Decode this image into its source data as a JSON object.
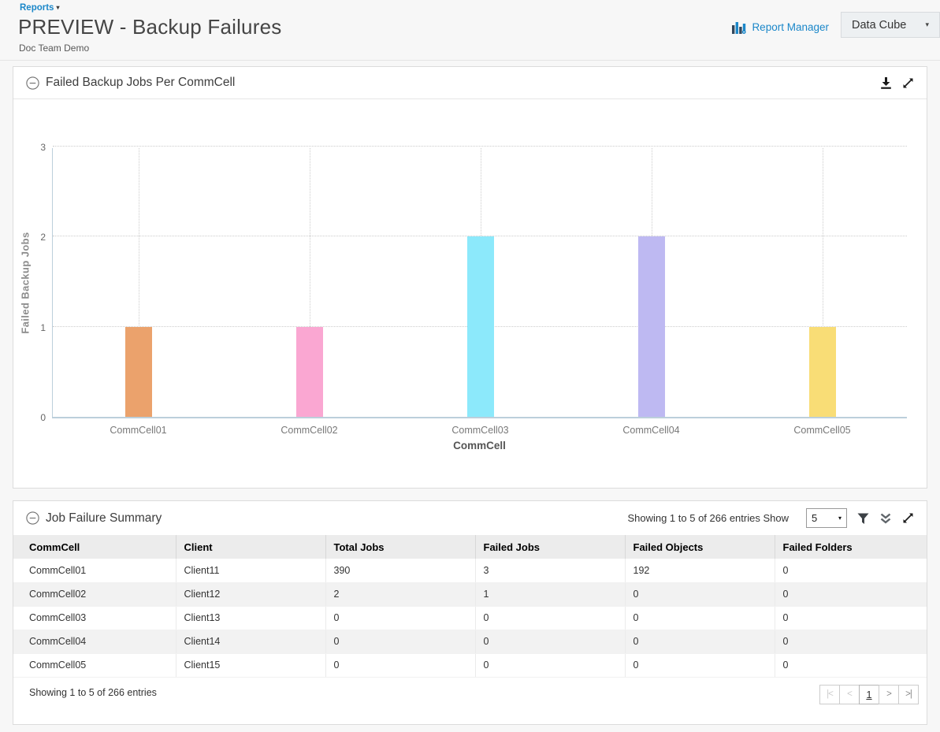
{
  "page": {
    "breadcrumb": "Reports",
    "title": "PREVIEW - Backup Failures",
    "subtitle": "Doc Team Demo",
    "report_manager_label": "Report Manager",
    "data_cube_label": "Data Cube"
  },
  "icons": {
    "caret_down": "▾"
  },
  "chart_panel": {
    "title": "Failed Backup Jobs Per CommCell"
  },
  "chart_data": {
    "type": "bar",
    "title": "Failed Backup Jobs Per CommCell",
    "categories": [
      "CommCell01",
      "CommCell02",
      "CommCell03",
      "CommCell04",
      "CommCell05"
    ],
    "values": [
      1,
      1,
      2,
      2,
      1
    ],
    "bar_colors": [
      "#eba26c",
      "#faa7d2",
      "#8ce9fb",
      "#beb9f2",
      "#f9dd76"
    ],
    "xlabel": "CommCell",
    "ylabel": "Failed Backup Jobs",
    "ylim": [
      0,
      3
    ],
    "yticks": [
      0,
      1,
      2,
      3
    ],
    "grid": "dotted horizontal and vertical",
    "legend": "none"
  },
  "table_panel": {
    "title": "Job Failure Summary",
    "showing_text": "Showing 1 to 5 of 266 entries",
    "show_label": "Show",
    "page_size": "5",
    "columns": [
      "CommCell",
      "Client",
      "Total Jobs",
      "Failed Jobs",
      "Failed Objects",
      "Failed Folders"
    ],
    "rows": [
      [
        "CommCell01",
        "Client11",
        "390",
        "3",
        "192",
        "0"
      ],
      [
        "CommCell02",
        "Client12",
        "2",
        "1",
        "0",
        "0"
      ],
      [
        "CommCell03",
        "Client13",
        "0",
        "0",
        "0",
        "0"
      ],
      [
        "CommCell04",
        "Client14",
        "0",
        "0",
        "0",
        "0"
      ],
      [
        "CommCell05",
        "Client15",
        "0",
        "0",
        "0",
        "0"
      ]
    ],
    "footer_showing_text": "Showing 1 to 5 of 266 entries",
    "pagination": {
      "first": "|<",
      "prev": "<",
      "current_page": "1",
      "next": ">",
      "last": ">|"
    }
  },
  "colors": {
    "accent_blue": "#1b87c9",
    "axis": "#bccfdb",
    "header_row_bg": "#ececec",
    "stripe_bg": "#f2f2f2"
  }
}
